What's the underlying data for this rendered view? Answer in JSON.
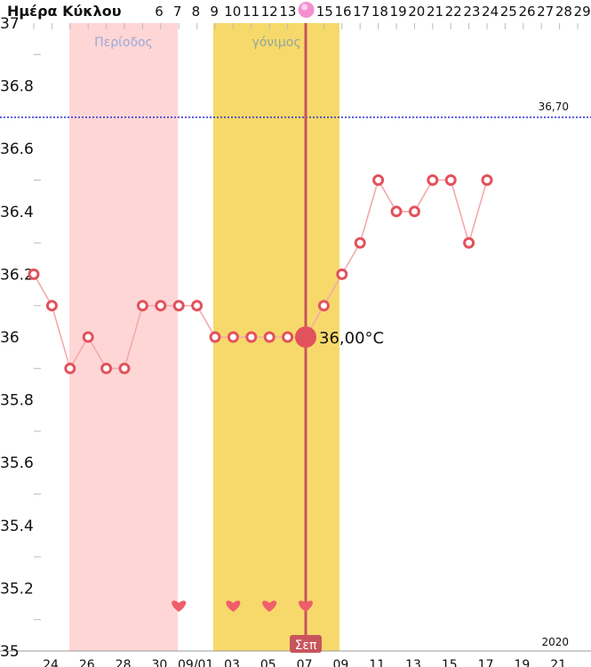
{
  "chart_data": {
    "type": "line",
    "title": "",
    "cycle_days_label": "Ημέρα Κύκλου",
    "cycle_days": [
      "6",
      "7",
      "8",
      "9",
      "10",
      "11",
      "12",
      "13",
      "",
      "15",
      "16",
      "17",
      "18",
      "19",
      "20",
      "21",
      "22",
      "23",
      "24",
      "25",
      "26",
      "27",
      "28",
      "29"
    ],
    "ylim": [
      35,
      37
    ],
    "yticks": [
      "37",
      "36.8",
      "36.6",
      "36.4",
      "36.2",
      "36",
      "35.8",
      "35.6",
      "35.4",
      "35.2",
      "35"
    ],
    "x_date_labels": [
      "24",
      "26",
      "28",
      "30",
      "09/01",
      "03",
      "05",
      "07",
      "09",
      "11",
      "13",
      "15",
      "17",
      "19",
      "21"
    ],
    "month_label": "Σεπ",
    "year_label": "2020",
    "threshold": {
      "value": 36.7,
      "label": "36,70"
    },
    "period_band": {
      "label": "Περίοδος",
      "color": "#ffd6d6"
    },
    "fertile_band": {
      "label": "γόνιμος",
      "color": "#f7d96b"
    },
    "current_reading": {
      "label": "36,00°C",
      "value": 36.0,
      "day_index": 15
    },
    "series": [
      {
        "values": [
          36.2,
          36.1,
          35.9,
          36.0,
          35.9,
          35.9,
          36.1,
          36.1,
          36.1,
          36.1,
          36.0,
          36.0,
          36.0,
          36.0,
          36.0,
          36.0,
          36.1,
          36.2,
          36.3,
          36.5,
          36.4,
          36.4,
          36.5,
          36.5,
          36.3,
          36.5
        ]
      }
    ],
    "marker_color": "#e2525c",
    "line_color": "#f4a9ad",
    "heart_day_indices": [
      8,
      11,
      13,
      15
    ],
    "grid": false
  }
}
